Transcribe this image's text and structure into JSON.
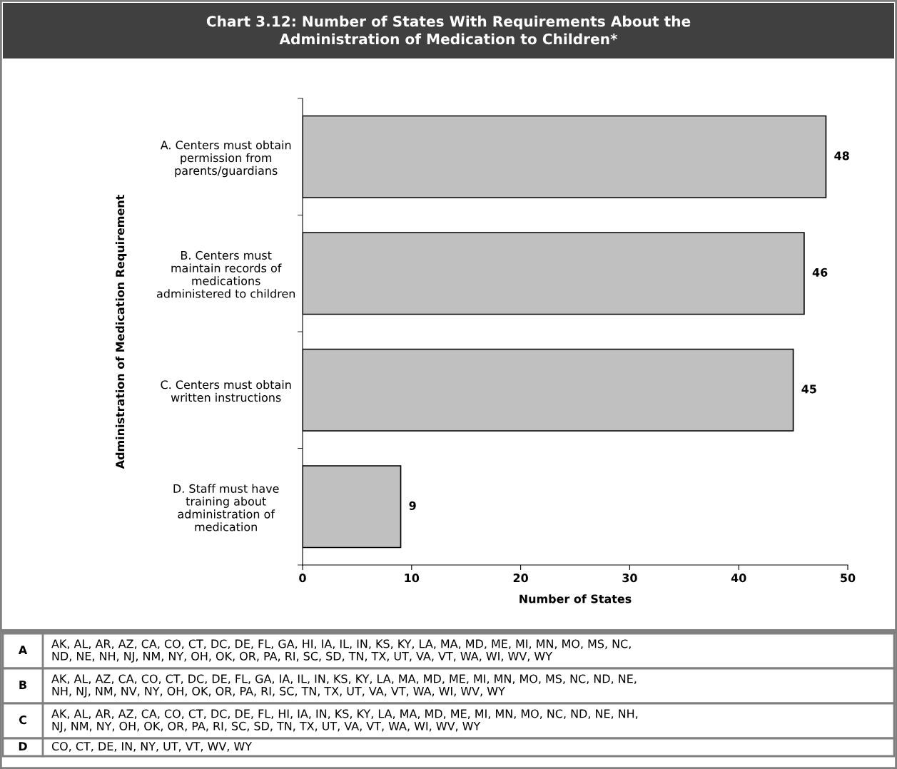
{
  "chart_data": {
    "type": "bar",
    "orientation": "horizontal",
    "title": "Chart 3.12: Number of States With Requirements About the\nAdministration of Medication to Children*",
    "categories": [
      "A. Centers must obtain\npermission from\nparents/guardians",
      "B. Centers must\nmaintain records of\nmedications\nadministered to children",
      "C. Centers must obtain\nwritten instructions",
      "D. Staff must have\ntraining about\nadministration of\nmedication"
    ],
    "values": [
      48,
      46,
      45,
      9
    ],
    "color": "#c0c0c0",
    "xlabel": "Number of States",
    "ylabel": "Administration of Medication Requirement",
    "xlim": [
      0,
      50
    ],
    "xticks": [
      0,
      10,
      20,
      30,
      40,
      50
    ],
    "data_labels": true,
    "grid": false,
    "legend": false,
    "annotations": [
      "A",
      "AK, AL, AR, AZ, CA, CO, CT, DC, DE, FL, GA, HI, IA, IL, IN, KS, KY, LA, MA, MD, ME, MI, MN, MO, MS, NC,\nND, NE, NH, NJ, NM, NY, OH, OK, OR, PA, RI, SC, SD, TN, TX, UT, VA, VT, WA, WI, WV, WY",
      "B",
      "AK, AL, AZ, CA, CO, CT, DC, DE, FL, GA, IA, IL, IN, KS, KY, LA, MA, MD, ME, MI, MN, MO, MS, NC, ND, NE,\nNH, NJ, NM, NV, NY, OH, OK, OR, PA, RI, SC, TN, TX, UT, VA, VT, WA, WI, WV, WY",
      "C",
      "AK, AL, AR, AZ, CA, CO, CT, DC, DE, FL, HI, IA, IN, KS, KY, LA, MA, MD, ME, MI, MN, MO, NC, ND, NE, NH,\nNJ, NM, NY, OH, OK, OR, PA, RI, SC, SD, TN, TX, UT, VA, VT, WA, WI, WV, WY",
      "D",
      "CO, CT, DE, IN, NY, UT, VT, WV, WY"
    ]
  }
}
